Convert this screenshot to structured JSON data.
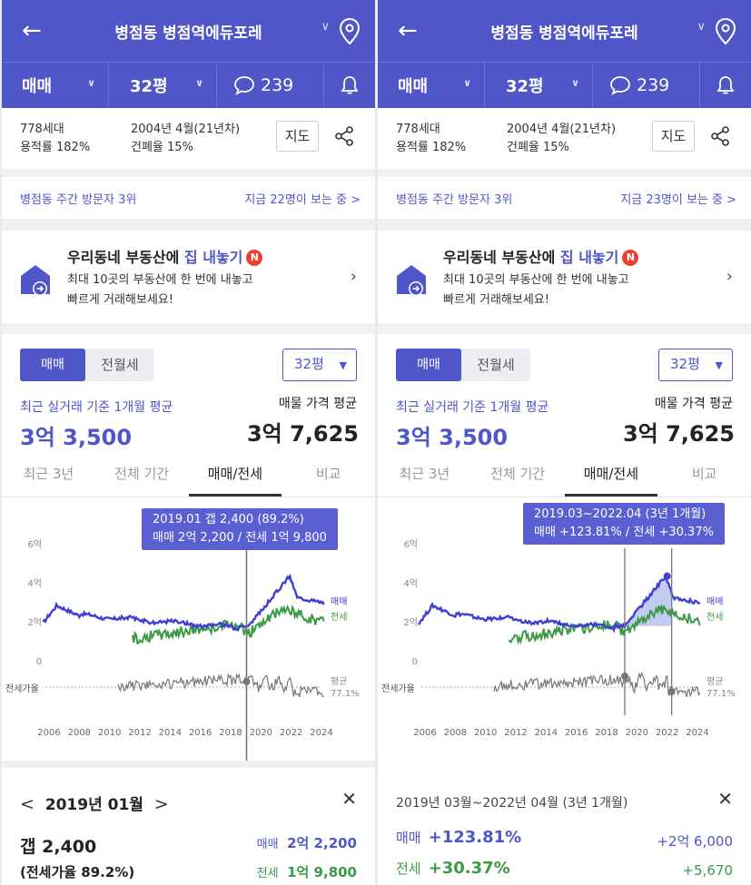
{
  "header": {
    "title": "병점동 병점역에듀포레",
    "trade_type": "매매",
    "size": "32평",
    "comment_count": "239"
  },
  "info": {
    "households": "778세대",
    "floor_area_ratio": "용적률 182%",
    "built": "2004년 4월(21년차)",
    "coverage_ratio": "건폐율 15%",
    "map_label": "지도"
  },
  "visitors": {
    "rank": "병점동 주간 방문자 3위",
    "viewing_left": "지금 22명이 보는 중 >",
    "viewing_right": "지금 23명이 보는 중 >"
  },
  "promo": {
    "title_pre": "우리동네 부동산에",
    "title_hl": "집 내놓기",
    "badge": "N",
    "line1": "최대 10곳의 부동산에 한 번에 내놓고",
    "line2": "빠르게 거래해보세요!"
  },
  "trade": {
    "seg_on": "매매",
    "seg_off": "전월세",
    "size": "32평",
    "avg_label": "최근 실거래 기준 1개월 평균",
    "avg_value": "3억 3,500",
    "listing_label": "매물 가격 평균",
    "listing_value": "3억 7,625"
  },
  "tabs": [
    "최근 3년",
    "전체 기간",
    "매매/전세",
    "비교"
  ],
  "chart": {
    "y_labels": [
      "6억",
      "4억",
      "2억",
      "0"
    ],
    "x_labels": [
      "2006",
      "2008",
      "2010",
      "2012",
      "2014",
      "2016",
      "2018",
      "2020",
      "2022",
      "2024"
    ],
    "series_sale": "매매",
    "series_jeonse": "전세",
    "ratio_label": "전세가율",
    "avg_label": "평균",
    "avg_value": "77.1%",
    "colors": {
      "sale": "#3f3fd0",
      "jeonse": "#3c9a46",
      "ratio": "#777777",
      "accent": "#4f56c8"
    }
  },
  "left_tooltip": {
    "line1": "2019.01  갭 2,400 (89.2%)",
    "line2": "매매 2억 2,200 / 전세 1억 9,800"
  },
  "right_tooltip": {
    "line1": "2019.03~2022.04 (3년 1개월)",
    "line2": "매매 +123.81%  /  전세 +30.37%"
  },
  "left_detail": {
    "prev": "<",
    "month": "2019년 01월",
    "next": ">",
    "gap": "갭 2,400",
    "ratio": "(전세가율 89.2%)",
    "sale_label": "매매",
    "sale_value": "2억 2,200",
    "jeonse_label": "전세",
    "jeonse_value": "1억 9,800"
  },
  "right_detail": {
    "period": "2019년 03월~2022년 04월 (3년 1개월)",
    "sale_label": "매매",
    "sale_pct": "+123.81%",
    "sale_abs": "+2억 6,000",
    "jeonse_label": "전세",
    "jeonse_pct": "+30.37%",
    "jeonse_abs": "+5,670"
  }
}
